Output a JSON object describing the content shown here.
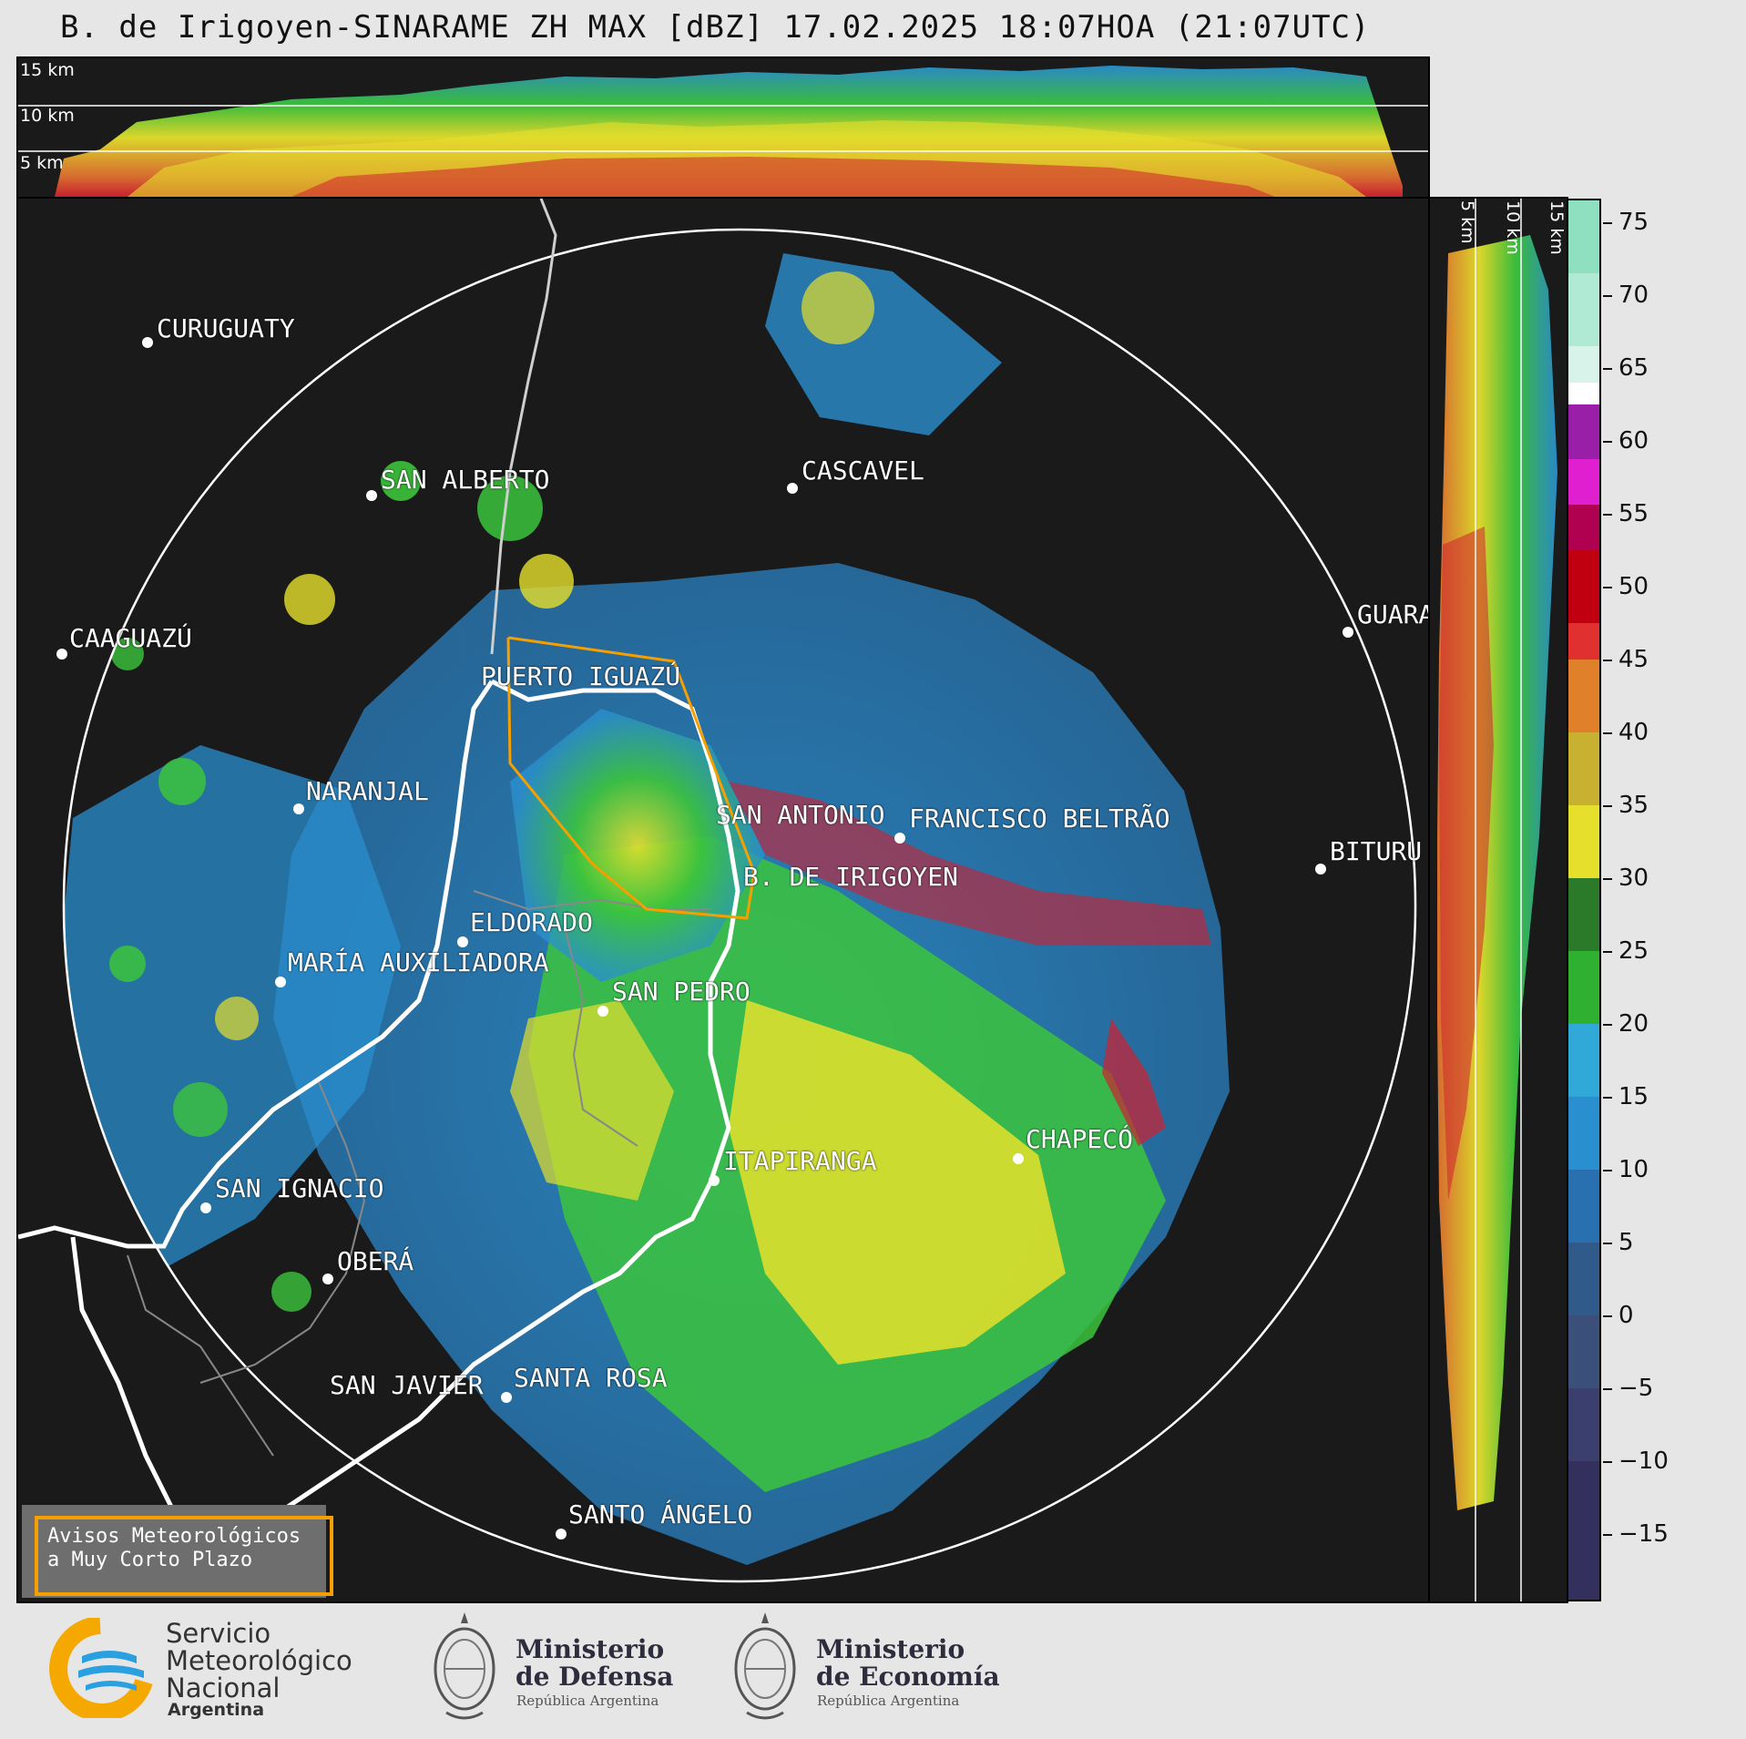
{
  "header": {
    "title": "B. de Irigoyen-SINARAME ZH MAX [dBZ] 17.02.2025 18:07HOA (21:07UTC)"
  },
  "top_profile": {
    "labels": [
      "15 km",
      "10 km",
      "5 km"
    ]
  },
  "side_profile": {
    "labels": [
      "5 km",
      "10 km",
      "15 km"
    ]
  },
  "map": {
    "cities": [
      {
        "name": "CURUGUATY"
      },
      {
        "name": "SAN ALBERTO"
      },
      {
        "name": "CASCAVEL"
      },
      {
        "name": "CAAGUAZÚ"
      },
      {
        "name": "GUARA"
      },
      {
        "name": "PUERTO IGUAZÚ"
      },
      {
        "name": "NARANJAL"
      },
      {
        "name": "SAN ANTONIO"
      },
      {
        "name": "FRANCISCO BELTRÃO"
      },
      {
        "name": "BITURU"
      },
      {
        "name": "B. DE IRIGOYEN"
      },
      {
        "name": "ELDORADO"
      },
      {
        "name": "MARÍA AUXILIADORA"
      },
      {
        "name": "SAN PEDRO"
      },
      {
        "name": "CHAPECÓ"
      },
      {
        "name": "ITAPIRANGA"
      },
      {
        "name": "SAN IGNACIO"
      },
      {
        "name": "OBERÁ"
      },
      {
        "name": "SAN JAVIER"
      },
      {
        "name": "SANTA ROSA"
      },
      {
        "name": "SANTO ÁNGELO"
      }
    ],
    "alert_box": {
      "line1": "Avisos Meteorológicos",
      "line2": "a Muy Corto Plazo",
      "border_color": "#f5a000"
    }
  },
  "colorbar": {
    "unit": "dBZ",
    "ticks": [
      "75",
      "70",
      "65",
      "60",
      "55",
      "50",
      "45",
      "40",
      "35",
      "30",
      "25",
      "20",
      "15",
      "10",
      "5",
      "0",
      "−5",
      "−10",
      "−15"
    ]
  },
  "footer": {
    "smn": {
      "line1": "Servicio",
      "line2": "Meteorológico",
      "line3": "Nacional",
      "line4": "Argentina"
    },
    "defensa": {
      "line1": "Ministerio",
      "line2": "de Defensa",
      "line3": "República Argentina"
    },
    "economia": {
      "line1": "Ministerio",
      "line2": "de Economía",
      "line3": "República Argentina"
    }
  },
  "colors": {
    "background": "#1a1a1a",
    "light_rain": "#2a8fcf",
    "moderate": "#3cc43c",
    "heavy": "#e6e02c",
    "intense": "#e03030"
  }
}
